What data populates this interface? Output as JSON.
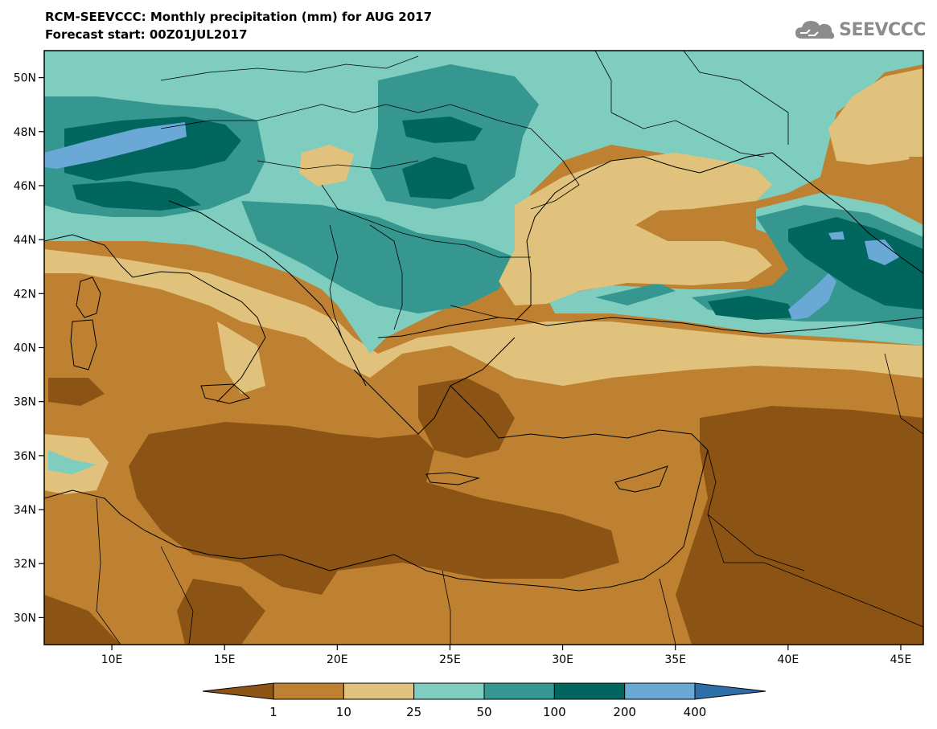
{
  "title": {
    "line1": "RCM-SEEVCCC: Monthly precipitation (mm) for AUG 2017",
    "line2": "Forecast start: 00Z01JUL2017"
  },
  "logo": {
    "text": "SEEVCCC",
    "icon": "cloud-icon"
  },
  "map": {
    "lon_range": [
      7,
      46
    ],
    "lat_range": [
      29,
      51
    ],
    "lat_ticks": [
      {
        "value": 30,
        "label": "30N"
      },
      {
        "value": 32,
        "label": "32N"
      },
      {
        "value": 34,
        "label": "34N"
      },
      {
        "value": 36,
        "label": "36N"
      },
      {
        "value": 38,
        "label": "38N"
      },
      {
        "value": 40,
        "label": "40N"
      },
      {
        "value": 42,
        "label": "42N"
      },
      {
        "value": 44,
        "label": "44N"
      },
      {
        "value": 46,
        "label": "46N"
      },
      {
        "value": 48,
        "label": "48N"
      },
      {
        "value": 50,
        "label": "50N"
      }
    ],
    "lon_ticks": [
      {
        "value": 10,
        "label": "10E"
      },
      {
        "value": 15,
        "label": "15E"
      },
      {
        "value": 20,
        "label": "20E"
      },
      {
        "value": 25,
        "label": "25E"
      },
      {
        "value": 30,
        "label": "30E"
      },
      {
        "value": 35,
        "label": "35E"
      },
      {
        "value": 40,
        "label": "40E"
      },
      {
        "value": 45,
        "label": "45E"
      }
    ]
  },
  "colorbar": {
    "labels": [
      "1",
      "10",
      "25",
      "50",
      "100",
      "200",
      "400"
    ],
    "colors": [
      "#8c5414",
      "#be8132",
      "#e0c27c",
      "#7ecdbf",
      "#35978f",
      "#01665e",
      "#6aa9d6",
      "#2f6fa7"
    ]
  }
}
